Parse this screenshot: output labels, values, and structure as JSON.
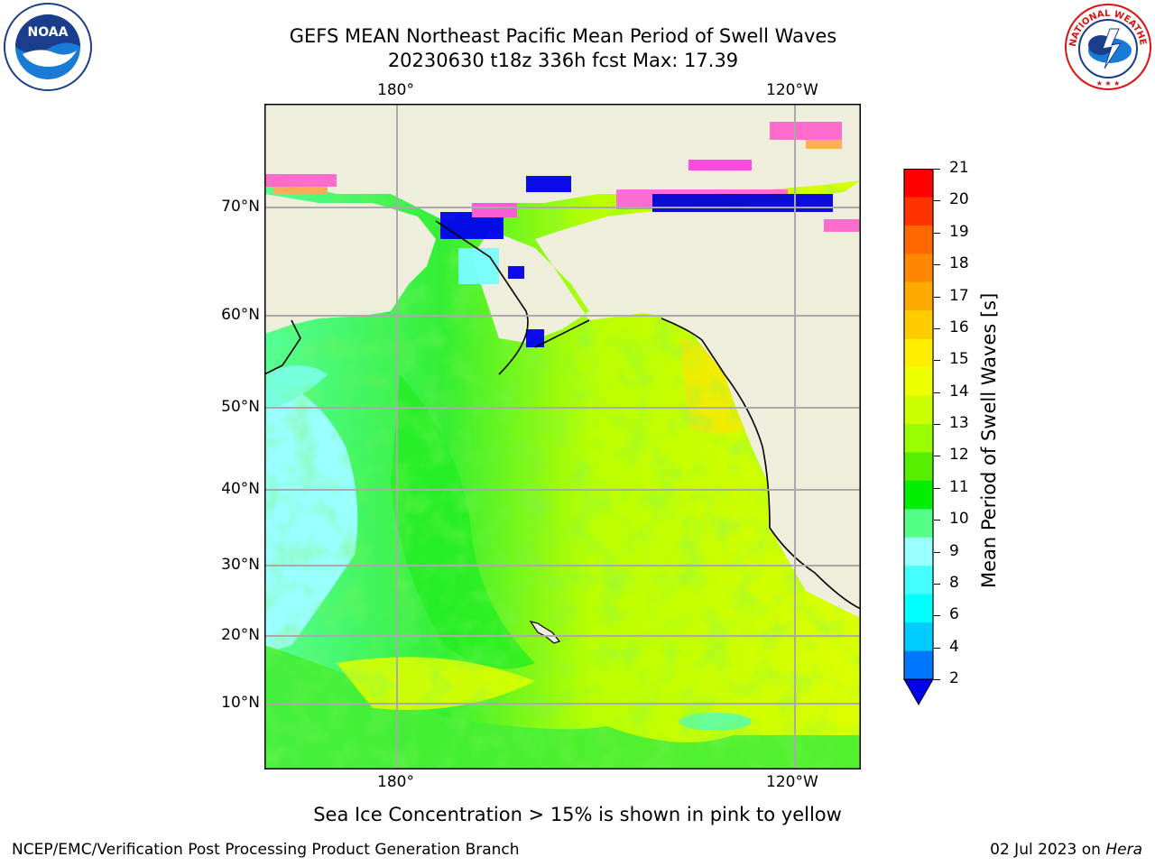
{
  "title_line1": "GEFS MEAN Northeast Pacific Mean Period of Swell Waves",
  "title_line2": "20230630 t18z 336h fcst   Max: 17.39",
  "lon_labels": [
    "180°",
    "120°W"
  ],
  "lat_labels": [
    "70°N",
    "60°N",
    "50°N",
    "40°N",
    "30°N",
    "20°N",
    "10°N"
  ],
  "colorbar": {
    "label": "Mean Period of Swell Waves [s]",
    "ticks": [
      "21",
      "20",
      "19",
      "18",
      "17",
      "16",
      "15",
      "14",
      "13",
      "12",
      "11",
      "10",
      "9",
      "8",
      "6",
      "4",
      "2"
    ],
    "colors": [
      "#ff0000",
      "#ff3300",
      "#ff6600",
      "#ff8800",
      "#ffaa00",
      "#ffcc00",
      "#ffee00",
      "#eeff00",
      "#ccff00",
      "#99ff00",
      "#55ee00",
      "#00ee00",
      "#55ff88",
      "#99ffff",
      "#44ffff",
      "#00ffff",
      "#00ccff",
      "#0077ff",
      "#0000ee"
    ]
  },
  "ice_note": "Sea Ice Concentration > 15% is shown in pink to yellow",
  "footer_left": "NCEP/EMC/Verification Post Processing Product Generation Branch",
  "footer_date": "02 Jul 2023 on ",
  "footer_host": "Hera",
  "logos": {
    "left": "NOAA",
    "right_text": "NATIONAL WEATHER SERVICE"
  }
}
